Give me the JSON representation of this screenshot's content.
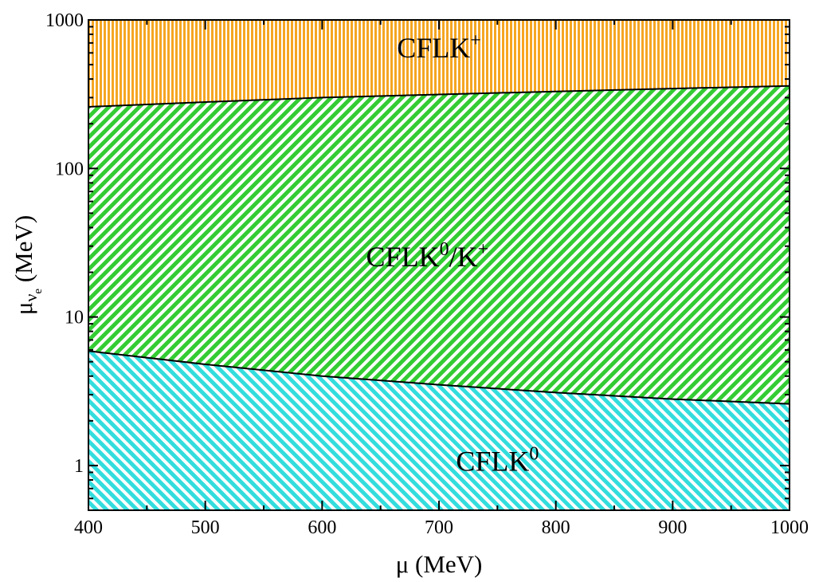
{
  "chart_data": {
    "type": "area",
    "title": "",
    "xlabel": "μ (MeV)",
    "ylabel": {
      "main": "μ",
      "sub1": "ν",
      "sub2": "e",
      "unit": "(MeV)"
    },
    "x_scale": "linear",
    "y_scale": "log",
    "xlim": [
      400,
      1000
    ],
    "ylim": [
      0.5,
      1000
    ],
    "x_ticks": [
      400,
      500,
      600,
      700,
      800,
      900,
      1000
    ],
    "y_ticks": [
      1,
      10,
      100,
      1000
    ],
    "x_tick_labels": [
      "400",
      "500",
      "600",
      "700",
      "800",
      "900",
      "1000"
    ],
    "y_tick_labels": [
      "1",
      "10",
      "100",
      "1000"
    ],
    "grid": false,
    "boundaries": [
      {
        "name": "upper",
        "x": [
          400,
          500,
          600,
          700,
          800,
          900,
          1000
        ],
        "y": [
          260,
          280,
          300,
          315,
          330,
          345,
          360
        ]
      },
      {
        "name": "lower",
        "x": [
          400,
          500,
          600,
          700,
          800,
          900,
          1000
        ],
        "y": [
          5.9,
          4.8,
          4.0,
          3.5,
          3.1,
          2.8,
          2.6
        ]
      }
    ],
    "regions": [
      {
        "label": {
          "base": "CFLK",
          "sup": "+"
        },
        "color": "#f5a623",
        "pattern": "vertical",
        "label_at": [
          700,
          560
        ]
      },
      {
        "label": {
          "base": "CFLK",
          "sup": "0",
          "slash": "/K",
          "sup2": "+"
        },
        "color": "#33cc33",
        "pattern": "diagonal-up",
        "label_at": [
          690,
          22
        ]
      },
      {
        "label": {
          "base": "CFLK",
          "sup": "0"
        },
        "color": "#33dddd",
        "pattern": "diagonal-down",
        "label_at": [
          750,
          0.92
        ]
      }
    ]
  }
}
